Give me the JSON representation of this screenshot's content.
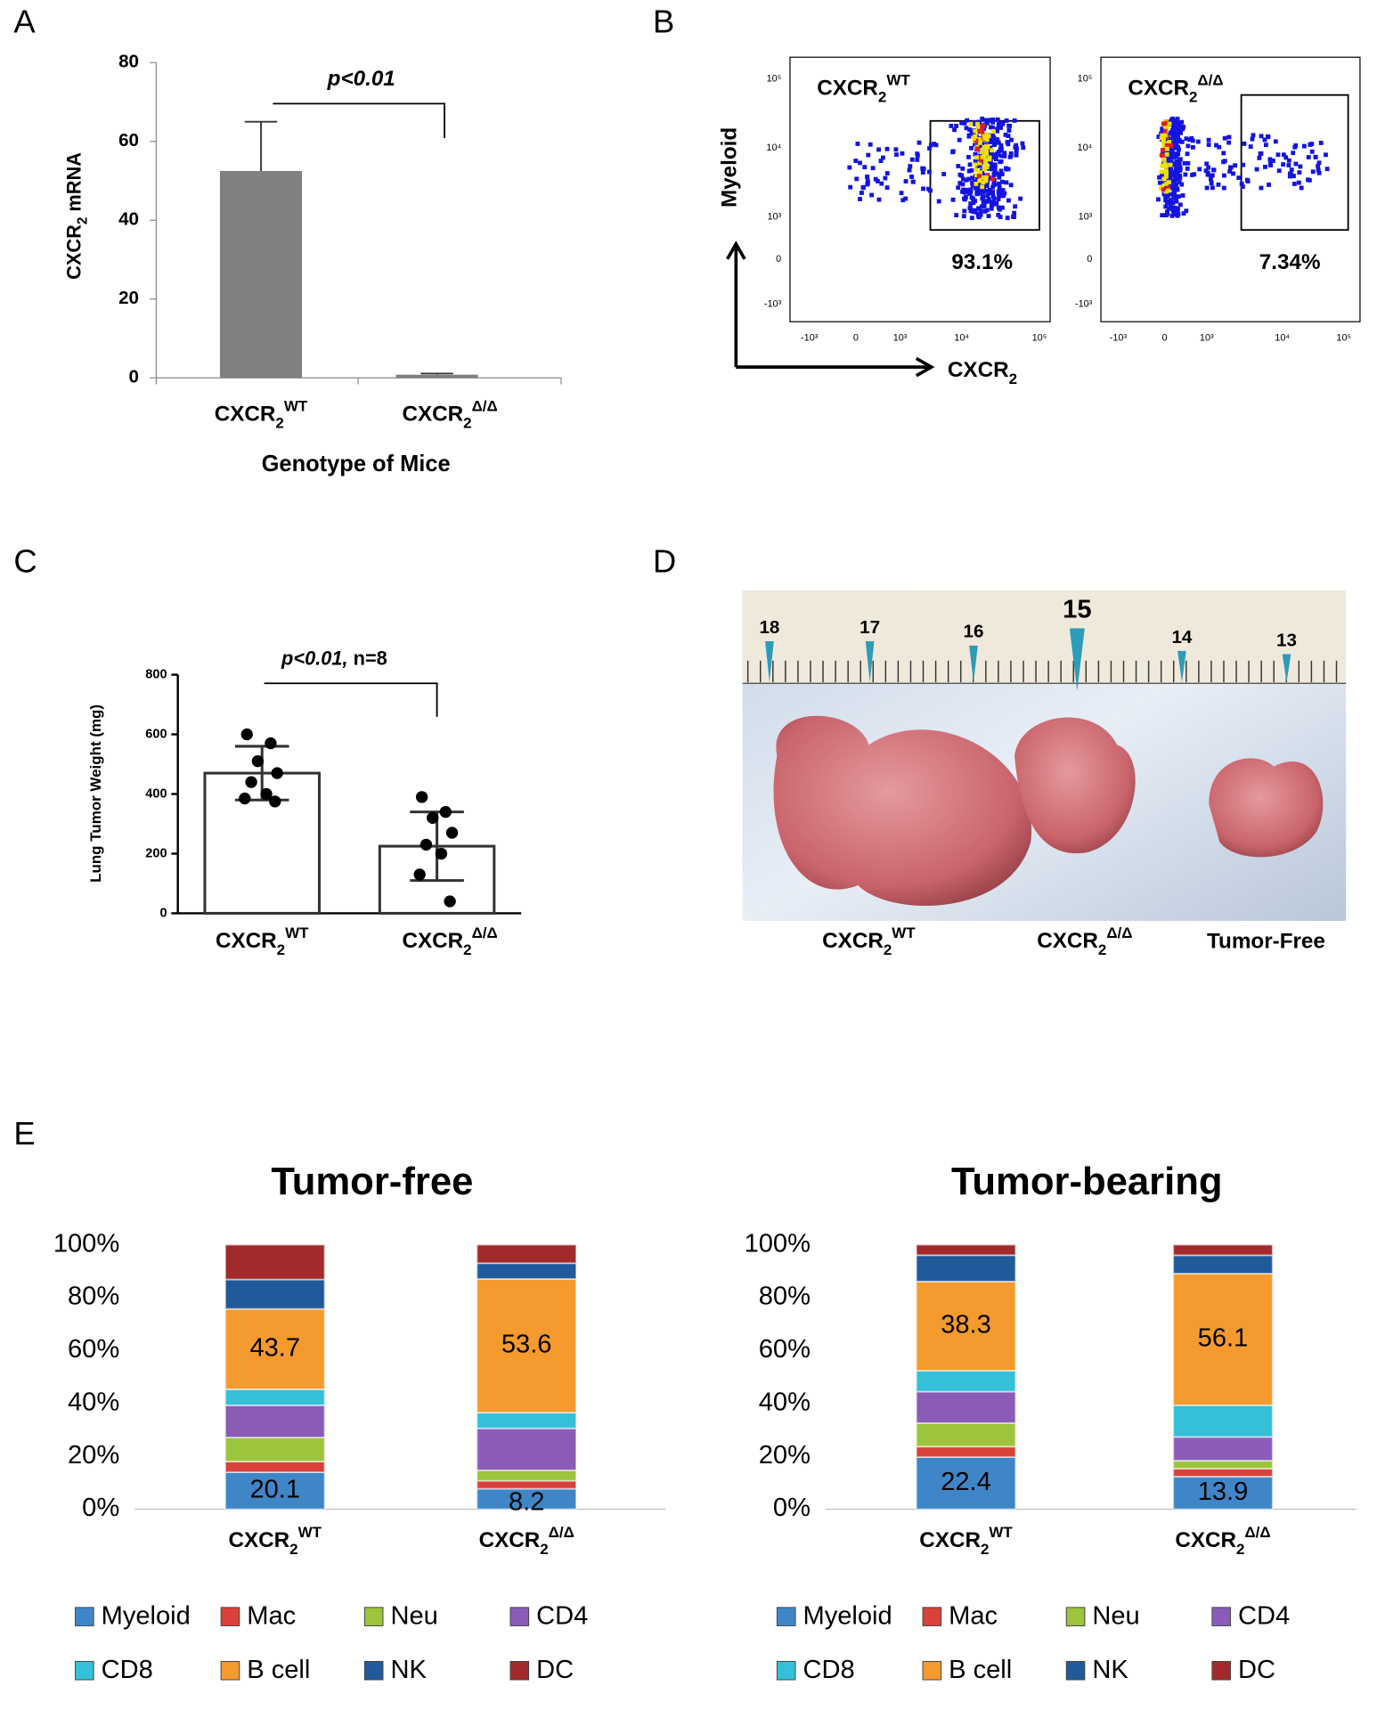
{
  "panel_labels": [
    "A",
    "B",
    "C",
    "D",
    "E"
  ],
  "flow_cytometry": {
    "ylabel": "Myeloid",
    "xlabel": {
      "text": "CXCR",
      "sub": "2"
    },
    "yticks": [
      "10⁵",
      "10⁴",
      "10³",
      "0",
      "-10³"
    ],
    "xticks": [
      "-10³",
      "0",
      "10³",
      "10⁴",
      "10⁵"
    ],
    "plots": [
      {
        "title": {
          "text": "CXCR",
          "sub": "2",
          "sup": "WT"
        },
        "gate_percent": "93.1%"
      },
      {
        "title": {
          "text": "CXCR",
          "sub": "2",
          "sup": "Δ/Δ"
        },
        "gate_percent": "7.34%"
      }
    ]
  },
  "photo": {
    "ruler_marks": [
      "18",
      "17",
      "16",
      "15",
      "14",
      "13"
    ],
    "labels": [
      {
        "text": "CXCR",
        "sub": "2",
        "sup": "WT"
      },
      {
        "text": "CXCR",
        "sub": "2",
        "sup": "Δ/Δ"
      },
      "Tumor-Free"
    ]
  },
  "chart_data": [
    {
      "type": "bar",
      "ylabel": {
        "text": "CXCR",
        "sub": "2",
        "after": " mRNA"
      },
      "xlabel": "Genotype of Mice",
      "annotation": "p<0.01",
      "categories": [
        {
          "text": "CXCR",
          "sub": "2",
          "sup": "WT"
        },
        {
          "text": "CXCR",
          "sub": "2",
          "sup": "Δ/Δ"
        }
      ],
      "values": [
        52.5,
        0.8
      ],
      "errors": [
        12.5,
        0.3
      ],
      "color": "#808080",
      "ylim": [
        0,
        80
      ],
      "yticks": [
        0,
        20,
        40,
        60,
        80
      ]
    },
    {
      "type": "bar_dots",
      "ylabel": "Lung Tumor Weight (mg)",
      "annotation": {
        "italic": "p<0.01,",
        "text": " n=8"
      },
      "categories": [
        {
          "text": "CXCR",
          "sub": "2",
          "sup": "WT"
        },
        {
          "text": "CXCR",
          "sub": "2",
          "sup": "Δ/Δ"
        }
      ],
      "values": [
        470,
        225
      ],
      "errors": [
        90,
        115
      ],
      "points": [
        [
          600,
          570,
          510,
          470,
          440,
          400,
          385,
          375
        ],
        [
          390,
          340,
          320,
          270,
          230,
          200,
          130,
          40
        ]
      ],
      "color": "#ffffff",
      "ylim": [
        0,
        800
      ],
      "yticks": [
        0,
        200,
        400,
        600,
        800
      ]
    },
    {
      "type": "stacked_percent",
      "title": "Tumor-free",
      "categories": [
        {
          "text": "CXCR",
          "sub": "2",
          "sup": "WT"
        },
        {
          "text": "CXCR",
          "sub": "2",
          "sup": "Δ/Δ"
        }
      ],
      "data_labels": [
        "Myeloid",
        "B cell"
      ],
      "series": [
        {
          "name": "Myeloid",
          "color": "#3f86c8",
          "values": [
            20.1,
            8.2
          ]
        },
        {
          "name": "Mac",
          "color": "#d9413b",
          "values": [
            5.8,
            3.2
          ]
        },
        {
          "name": "Neu",
          "color": "#9cc43c",
          "values": [
            13.1,
            4.2
          ]
        },
        {
          "name": "CD4",
          "color": "#8a5cb8",
          "values": [
            17.5,
            16.8
          ]
        },
        {
          "name": "CD8",
          "color": "#33c0d8",
          "values": [
            8.7,
            6.3
          ]
        },
        {
          "name": "B cell",
          "color": "#f59a2e",
          "values": [
            43.7,
            53.6
          ]
        },
        {
          "name": "NK",
          "color": "#1f5a9a",
          "values": [
            16.0,
            6.3
          ]
        },
        {
          "name": "DC",
          "color": "#a32a2a",
          "values": [
            18.9,
            7.4
          ]
        }
      ],
      "ylim": [
        0,
        100
      ],
      "yticks": [
        {
          "value": 0,
          "label": "0%"
        },
        {
          "value": 20,
          "label": "20%"
        },
        {
          "value": 40,
          "label": "40%"
        },
        {
          "value": 60,
          "label": "60%"
        },
        {
          "value": 80,
          "label": "80%"
        },
        {
          "value": 100,
          "label": "100%"
        }
      ]
    },
    {
      "type": "stacked_percent",
      "title": "Tumor-bearing",
      "categories": [
        {
          "text": "CXCR",
          "sub": "2",
          "sup": "WT"
        },
        {
          "text": "CXCR",
          "sub": "2",
          "sup": "Δ/Δ"
        }
      ],
      "data_labels": [
        "Myeloid",
        "B cell"
      ],
      "series": [
        {
          "name": "Myeloid",
          "color": "#3f86c8",
          "values": [
            22.4,
            13.9
          ]
        },
        {
          "name": "Mac",
          "color": "#d9413b",
          "values": [
            4.5,
            3.4
          ]
        },
        {
          "name": "Neu",
          "color": "#9cc43c",
          "values": [
            10.1,
            3.4
          ]
        },
        {
          "name": "CD4",
          "color": "#8a5cb8",
          "values": [
            13.5,
            10.1
          ]
        },
        {
          "name": "CD8",
          "color": "#33c0d8",
          "values": [
            9.0,
            13.5
          ]
        },
        {
          "name": "B cell",
          "color": "#f59a2e",
          "values": [
            38.3,
            56.1
          ]
        },
        {
          "name": "NK",
          "color": "#1f5a9a",
          "values": [
            11.3,
            7.8
          ]
        },
        {
          "name": "DC",
          "color": "#a32a2a",
          "values": [
            4.5,
            4.5
          ]
        }
      ],
      "ylim": [
        0,
        100
      ],
      "yticks": [
        {
          "value": 0,
          "label": "0%"
        },
        {
          "value": 20,
          "label": "20%"
        },
        {
          "value": 40,
          "label": "40%"
        },
        {
          "value": 60,
          "label": "60%"
        },
        {
          "value": 80,
          "label": "80%"
        },
        {
          "value": 100,
          "label": "100%"
        }
      ]
    }
  ]
}
